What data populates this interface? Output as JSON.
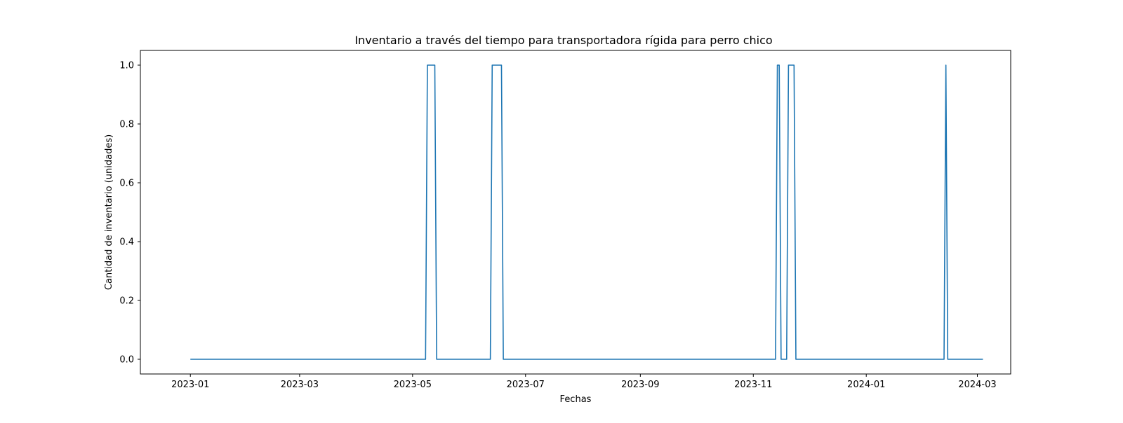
{
  "chart_data": {
    "type": "line",
    "title": "Inventario a través del tiempo para transportadora rígida para perro chico",
    "xlabel": "Fechas",
    "ylabel": "Cantidad de inventario (unidades)",
    "x_type": "date",
    "xlim": [
      "2022-12-05",
      "2024-03-19"
    ],
    "ylim": [
      -0.05,
      1.05
    ],
    "xticks": [
      "2023-01-01",
      "2023-03-01",
      "2023-05-01",
      "2023-07-01",
      "2023-09-01",
      "2023-11-01",
      "2024-01-01",
      "2024-03-01"
    ],
    "xtick_labels": [
      "2023-01",
      "2023-03",
      "2023-05",
      "2023-07",
      "2023-09",
      "2023-11",
      "2024-01",
      "2024-03"
    ],
    "yticks": [
      0.0,
      0.2,
      0.4,
      0.6,
      0.8,
      1.0
    ],
    "ytick_labels": [
      "0.0",
      "0.2",
      "0.4",
      "0.6",
      "0.8",
      "1.0"
    ],
    "grid": false,
    "color": "#1f77b4",
    "series": [
      {
        "x": [
          "2023-01-01",
          "2023-05-08",
          "2023-05-09",
          "2023-05-13",
          "2023-05-14",
          "2023-06-12",
          "2023-06-13",
          "2023-06-18",
          "2023-06-19",
          "2023-11-13",
          "2023-11-14",
          "2023-11-15",
          "2023-11-16",
          "2023-11-19",
          "2023-11-20",
          "2023-11-23",
          "2023-11-24",
          "2024-02-12",
          "2024-02-13",
          "2024-02-14",
          "2024-03-04"
        ],
        "y": [
          0,
          0,
          1,
          1,
          0,
          0,
          1,
          1,
          0,
          0,
          1,
          1,
          0,
          0,
          1,
          1,
          0,
          0,
          1,
          0,
          0
        ]
      }
    ]
  }
}
